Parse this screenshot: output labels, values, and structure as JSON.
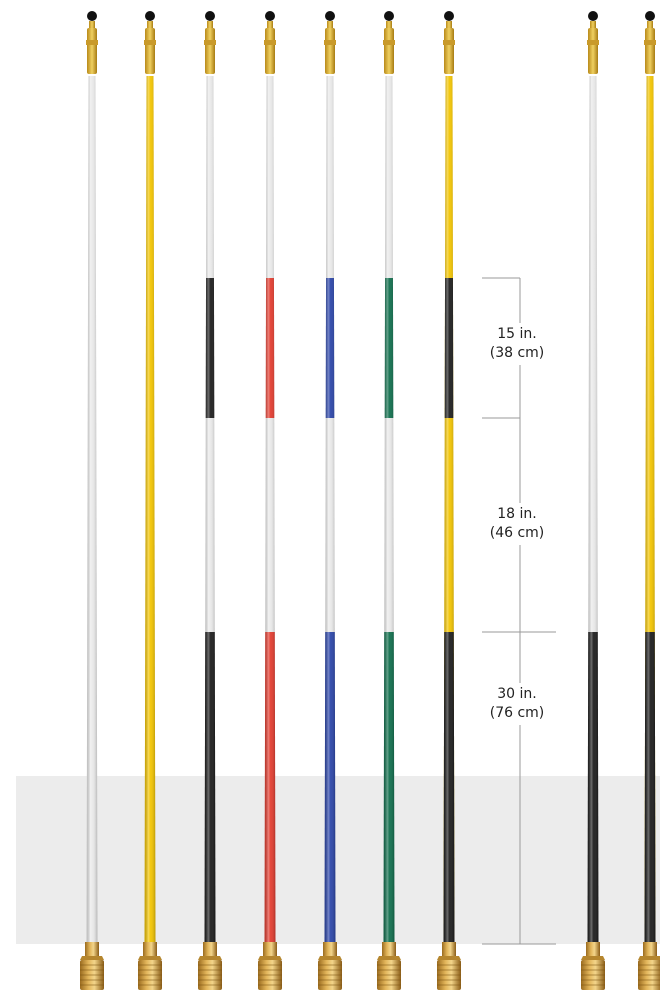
{
  "colors": {
    "white": "#e9e9e9",
    "yellow": "#f2c400",
    "black": "#1c1c1c",
    "red": "#e23b2e",
    "blue": "#2a44a8",
    "green": "#0f6e4c",
    "ground": "#ececec",
    "dim_line": "#9a9a9a"
  },
  "poles": [
    {
      "name": "white",
      "base": "white",
      "top_band": null,
      "bottom_band": null
    },
    {
      "name": "yellow",
      "base": "yellow",
      "top_band": null,
      "bottom_band": null
    },
    {
      "name": "white-black",
      "base": "white",
      "top_band": "black",
      "bottom_band": "black"
    },
    {
      "name": "white-red",
      "base": "white",
      "top_band": "red",
      "bottom_band": "red"
    },
    {
      "name": "white-blue",
      "base": "white",
      "top_band": "blue",
      "bottom_band": "blue"
    },
    {
      "name": "white-green",
      "base": "white",
      "top_band": "green",
      "bottom_band": "green"
    },
    {
      "name": "yellow-black",
      "base": "yellow",
      "top_band": "black",
      "bottom_band": "black"
    },
    {
      "name": "white-black-bottom",
      "base": "white",
      "top_band": null,
      "bottom_band": "black"
    },
    {
      "name": "yellow-black-bottom",
      "base": "yellow",
      "top_band": null,
      "bottom_band": "black"
    }
  ],
  "dimensions": [
    {
      "imperial": "15 in.",
      "metric": "(38 cm)"
    },
    {
      "imperial": "18 in.",
      "metric": "(46 cm)"
    },
    {
      "imperial": "30 in.",
      "metric": "(76 cm)"
    }
  ]
}
